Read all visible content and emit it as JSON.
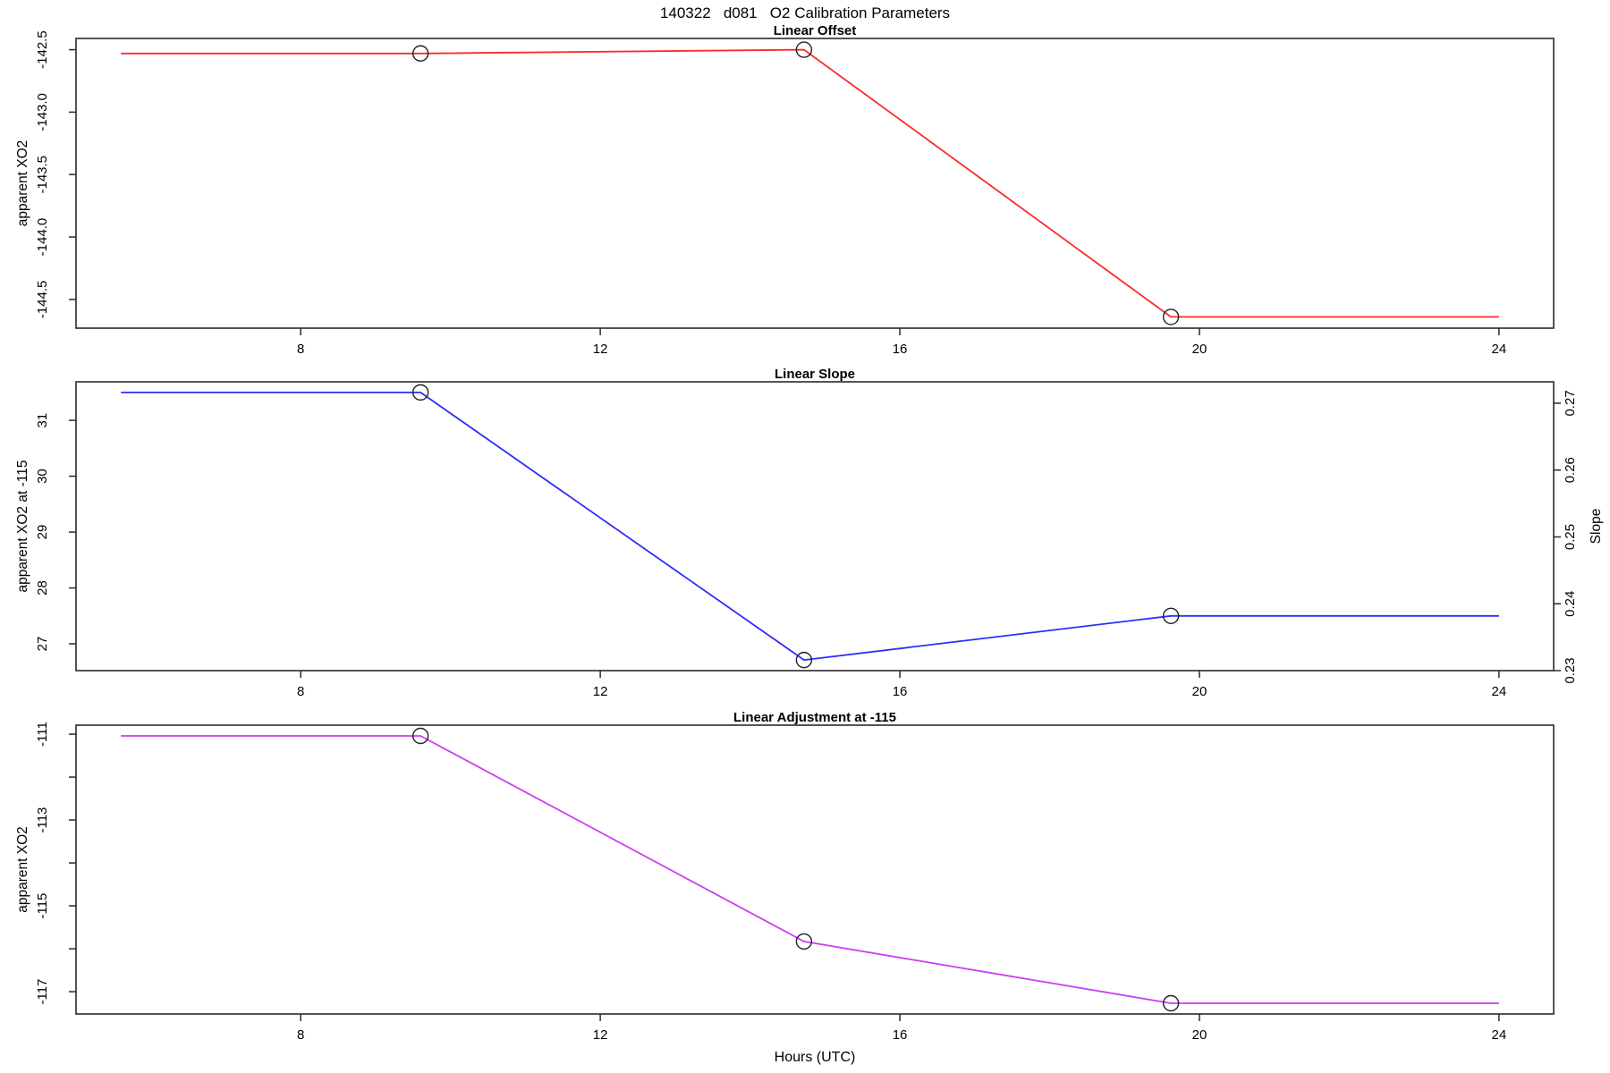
{
  "chart_data": {
    "type": "line",
    "title": "140322   d081   O2 Calibration Parameters",
    "xlabel": "Hours (UTC)",
    "xlim": [
      5.0,
      24.73
    ],
    "xticks": [
      8,
      12,
      16,
      20,
      24
    ],
    "marker_style": "open-circle",
    "grid": false,
    "panels": [
      {
        "id": "linear-offset",
        "title": "Linear Offset",
        "ylabel": "apparent XO2",
        "color": "#fb2c2c",
        "ylim": [
          -144.73,
          -142.41
        ],
        "yticks": [
          {
            "value": -142.5,
            "label": "-142.5"
          },
          {
            "value": -143.0,
            "label": "-143.0"
          },
          {
            "value": -143.5,
            "label": "-143.5"
          },
          {
            "value": -144.0,
            "label": "-144.0"
          },
          {
            "value": -144.5,
            "label": "-144.5"
          }
        ],
        "x": [
          5.6,
          9.6,
          14.72,
          19.62,
          24.0
        ],
        "y": [
          -142.53,
          -142.53,
          -142.5,
          -144.64,
          -144.64
        ],
        "marker_point_indices": [
          1,
          2,
          3
        ]
      },
      {
        "id": "linear-slope",
        "title": "Linear Slope",
        "ylabel": "apparent XO2 at -115",
        "color": "#2d2dfb",
        "ylim": [
          26.52,
          31.69
        ],
        "yticks": [
          {
            "value": 27,
            "label": "27"
          },
          {
            "value": 28,
            "label": "28"
          },
          {
            "value": 29,
            "label": "29"
          },
          {
            "value": 30,
            "label": "30"
          },
          {
            "value": 31,
            "label": "31"
          }
        ],
        "right_axis": {
          "label": "Slope",
          "ylim": [
            0.23,
            0.2732
          ],
          "yticks": [
            {
              "value": 0.23,
              "label": "0.23"
            },
            {
              "value": 0.24,
              "label": "0.24"
            },
            {
              "value": 0.25,
              "label": "0.25"
            },
            {
              "value": 0.26,
              "label": "0.26"
            },
            {
              "value": 0.27,
              "label": "0.27"
            }
          ]
        },
        "x": [
          5.6,
          9.6,
          14.72,
          19.62,
          24.0
        ],
        "y": [
          31.5,
          31.5,
          26.71,
          27.5,
          27.5
        ],
        "y_right_equivalent": [
          0.2716,
          0.2716,
          0.2316,
          0.2382,
          0.2382
        ],
        "marker_point_indices": [
          1,
          2,
          3
        ]
      },
      {
        "id": "linear-adjustment",
        "title": "Linear Adjustment at -115",
        "ylabel": "apparent XO2",
        "color": "#cb3df0",
        "ylim": [
          -117.52,
          -110.79
        ],
        "yticks": [
          {
            "value": -117,
            "label": "-117"
          },
          {
            "value": -116,
            "label": ""
          },
          {
            "value": -115,
            "label": "-115"
          },
          {
            "value": -114,
            "label": ""
          },
          {
            "value": -113,
            "label": "-113"
          },
          {
            "value": -112,
            "label": ""
          },
          {
            "value": -111,
            "label": "-111"
          }
        ],
        "x": [
          5.6,
          9.6,
          14.72,
          19.62,
          24.0
        ],
        "y": [
          -111.04,
          -111.04,
          -115.83,
          -117.27,
          -117.27
        ],
        "marker_point_indices": [
          1,
          2,
          3
        ]
      }
    ]
  }
}
